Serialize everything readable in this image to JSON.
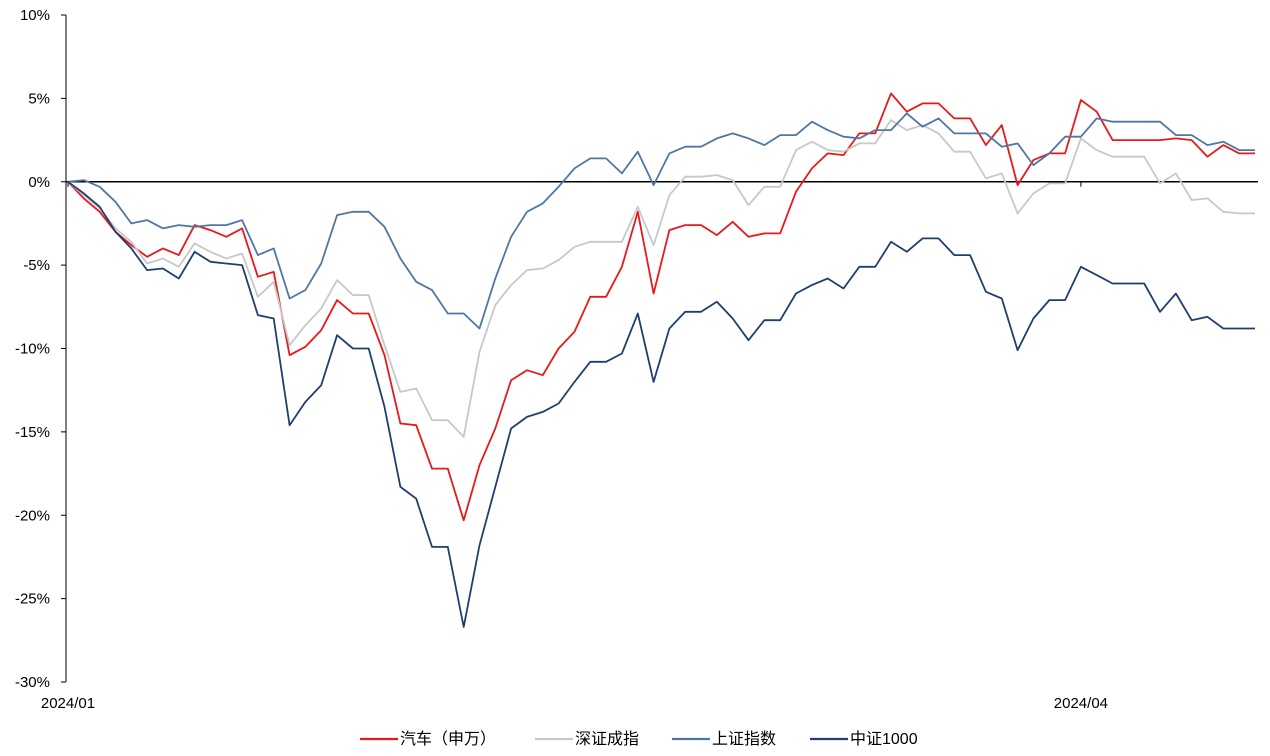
{
  "chart_data": {
    "type": "line",
    "title": "",
    "xlabel": "",
    "ylabel": "",
    "ylim": [
      -30,
      10
    ],
    "y_ticks": [
      10,
      5,
      0,
      -5,
      -10,
      -15,
      -20,
      -25,
      -30
    ],
    "y_tick_labels": [
      "10%",
      "5%",
      "0%",
      "-5%",
      "-10%",
      "-15%",
      "-20%",
      "-25%",
      "-30%"
    ],
    "x_tick_labels": [
      {
        "label": "2024/01",
        "index": 0
      },
      {
        "label": "2024/04",
        "index": 64
      }
    ],
    "grid": false,
    "zero_line": true,
    "legend_position": "bottom",
    "series": [
      {
        "name": "汽车（申万）",
        "color": "#e8191a",
        "values": [
          0,
          -1,
          -1.8,
          -3,
          -3.8,
          -4.5,
          -4,
          -4.4,
          -2.6,
          -2.9,
          -3.3,
          -2.8,
          -5.7,
          -5.4,
          -10.4,
          -9.9,
          -8.9,
          -7.1,
          -7.9,
          -7.9,
          -10.4,
          -14.5,
          -14.6,
          -17.2,
          -17.2,
          -20.3,
          -17,
          -14.8,
          -11.9,
          -11.3,
          -11.6,
          -10,
          -9,
          -6.9,
          -6.9,
          -5.1,
          -1.8,
          -6.7,
          -2.9,
          -2.6,
          -2.6,
          -3.2,
          -2.4,
          -3.3,
          -3.1,
          -3.1,
          -0.6,
          0.8,
          1.7,
          1.6,
          2.9,
          2.9,
          5.3,
          4.2,
          4.7,
          4.7,
          3.8,
          3.8,
          2.2,
          3.4,
          -0.2,
          1.3,
          1.7,
          1.7,
          4.9,
          4.2,
          2.5,
          2.5,
          2.5,
          2.5,
          2.6,
          2.5,
          1.5,
          2.2,
          1.7,
          1.7
        ]
      },
      {
        "name": "深证成指",
        "color": "#c8c8c8",
        "values": [
          0,
          -0.8,
          -1.6,
          -2.8,
          -3.6,
          -4.9,
          -4.6,
          -5.1,
          -3.7,
          -4.2,
          -4.6,
          -4.3,
          -6.9,
          -6,
          -9.8,
          -8.6,
          -7.6,
          -5.9,
          -6.8,
          -6.8,
          -9.8,
          -12.6,
          -12.4,
          -14.3,
          -14.3,
          -15.3,
          -10.2,
          -7.4,
          -6.2,
          -5.3,
          -5.2,
          -4.7,
          -3.9,
          -3.6,
          -3.6,
          -3.6,
          -1.5,
          -3.8,
          -0.8,
          0.3,
          0.3,
          0.4,
          0.1,
          -1.4,
          -0.3,
          -0.3,
          1.9,
          2.4,
          1.9,
          1.8,
          2.3,
          2.3,
          3.7,
          3.1,
          3.4,
          2.9,
          1.8,
          1.8,
          0.2,
          0.5,
          -1.9,
          -0.7,
          -0.1,
          -0.1,
          2.6,
          1.9,
          1.5,
          1.5,
          1.5,
          -0.1,
          0.5,
          -1.1,
          -1,
          -1.8,
          -1.9,
          -1.9
        ]
      },
      {
        "name": "上证指数",
        "color": "#4f77a3",
        "values": [
          0,
          0.1,
          -0.3,
          -1.2,
          -2.5,
          -2.3,
          -2.8,
          -2.6,
          -2.7,
          -2.6,
          -2.6,
          -2.3,
          -4.4,
          -4,
          -7,
          -6.5,
          -4.9,
          -2,
          -1.8,
          -1.8,
          -2.7,
          -4.6,
          -6,
          -6.5,
          -7.9,
          -7.9,
          -8.8,
          -5.8,
          -3.3,
          -1.8,
          -1.3,
          -0.3,
          0.8,
          1.4,
          1.4,
          0.5,
          1.8,
          -0.2,
          1.7,
          2.1,
          2.1,
          2.6,
          2.9,
          2.6,
          2.2,
          2.8,
          2.8,
          3.6,
          3.1,
          2.7,
          2.6,
          3.1,
          3.1,
          4.1,
          3.3,
          3.8,
          2.9,
          2.9,
          2.9,
          2.1,
          2.3,
          1,
          1.7,
          2.7,
          2.7,
          3.8,
          3.6,
          3.6,
          3.6,
          3.6,
          2.8,
          2.8,
          2.2,
          2.4,
          1.9,
          1.9
        ]
      },
      {
        "name": "中证1000",
        "color": "#1f3f6e",
        "values": [
          0,
          -0.7,
          -1.5,
          -3,
          -4,
          -5.3,
          -5.2,
          -5.8,
          -4.2,
          -4.8,
          -4.9,
          -5,
          -8,
          -8.2,
          -14.6,
          -13.2,
          -12.2,
          -9.2,
          -10,
          -10,
          -13.5,
          -18.3,
          -19,
          -21.9,
          -21.9,
          -26.7,
          -21.8,
          -18.3,
          -14.8,
          -14.1,
          -13.8,
          -13.3,
          -12,
          -10.8,
          -10.8,
          -10.3,
          -7.9,
          -12,
          -8.8,
          -7.8,
          -7.8,
          -7.2,
          -8.2,
          -9.5,
          -8.3,
          -8.3,
          -6.7,
          -6.2,
          -5.8,
          -6.4,
          -5.1,
          -5.1,
          -3.6,
          -4.2,
          -3.4,
          -3.4,
          -4.4,
          -4.4,
          -6.6,
          -7,
          -10.1,
          -8.2,
          -7.1,
          -7.1,
          -5.1,
          -5.6,
          -6.1,
          -6.1,
          -6.1,
          -7.8,
          -6.7,
          -8.3,
          -8.1,
          -8.8,
          -8.8,
          -8.8
        ]
      }
    ]
  }
}
